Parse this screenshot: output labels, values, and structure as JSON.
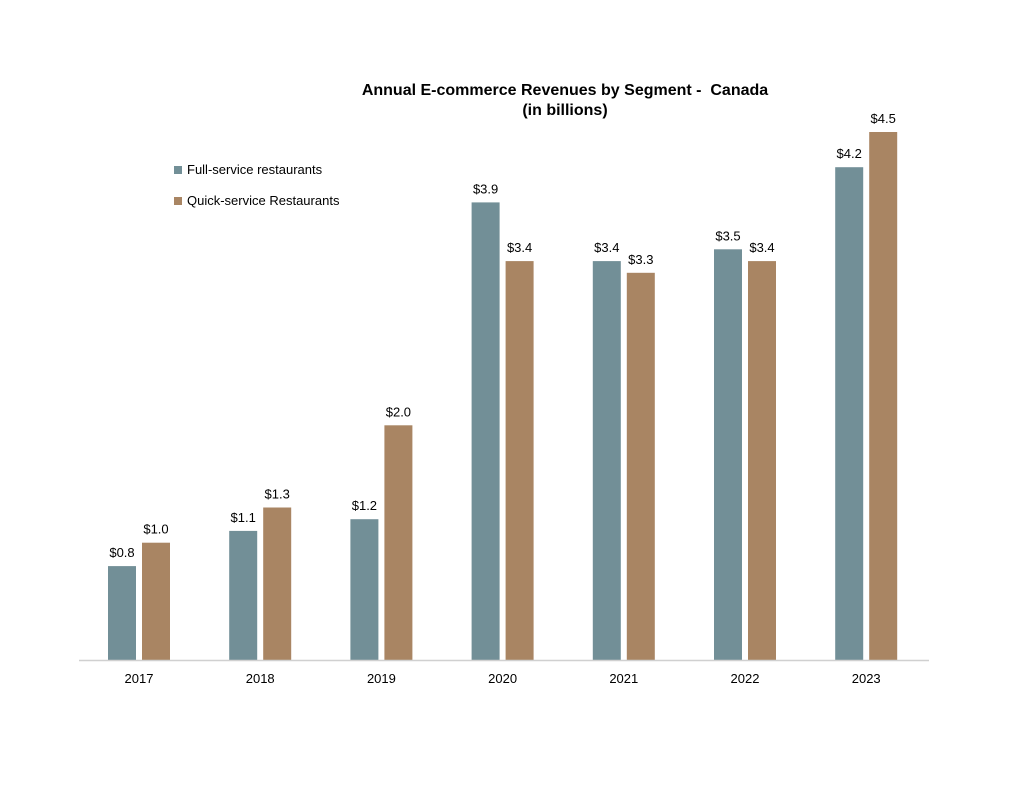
{
  "chart_data": {
    "type": "bar",
    "title": "Annual E-commerce Revenues by Segment -  Canada",
    "subtitle": "(in billions)",
    "categories": [
      "2017",
      "2018",
      "2019",
      "2020",
      "2021",
      "2022",
      "2023"
    ],
    "series": [
      {
        "name": "Full-service restaurants",
        "color": "#728f97",
        "values": [
          0.8,
          1.1,
          1.2,
          3.9,
          3.4,
          3.5,
          4.2
        ],
        "labels": [
          "$0.8",
          "$1.1",
          "$1.2",
          "$3.9",
          "$3.4",
          "$3.5",
          "$4.2"
        ]
      },
      {
        "name": "Quick-service Restaurants",
        "color": "#a98563",
        "values": [
          1.0,
          1.3,
          2.0,
          3.4,
          3.3,
          3.4,
          4.5
        ],
        "labels": [
          "$1.0",
          "$1.3",
          "$2.0",
          "$3.4",
          "$3.3",
          "$3.4",
          "$4.5"
        ]
      }
    ],
    "xlabel": "",
    "ylabel": "",
    "ylim": [
      0,
      4.5
    ],
    "grid": false,
    "legend_position": "top-left"
  }
}
